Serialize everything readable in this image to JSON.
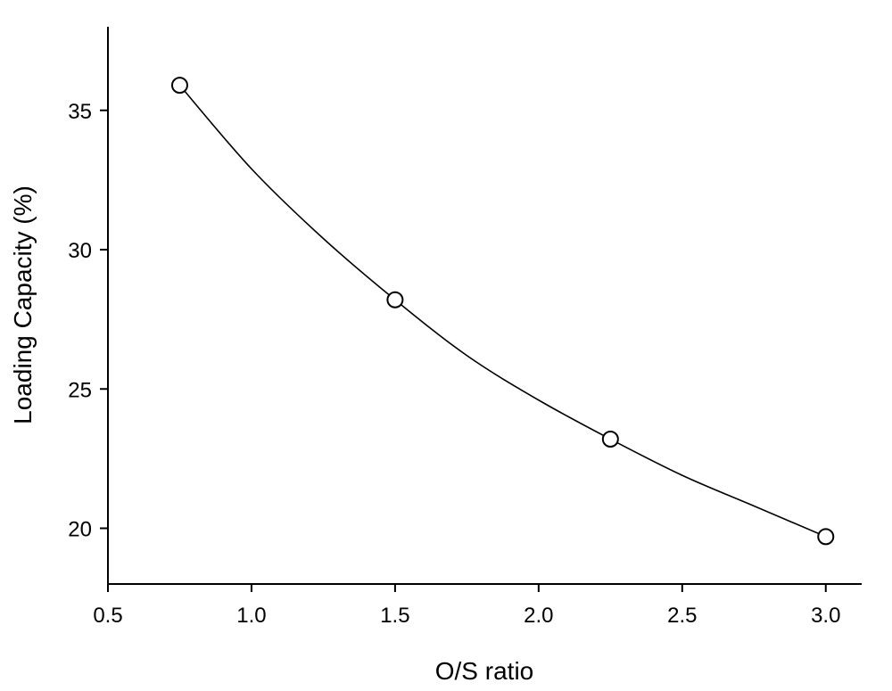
{
  "chart_data": {
    "type": "scatter",
    "title": "",
    "xlabel": "O/S ratio",
    "ylabel": "Loading Capacity (%)",
    "xlim": [
      0.5,
      3.125
    ],
    "ylim": [
      18,
      38
    ],
    "x_ticks": [
      0.5,
      1.0,
      1.5,
      2.0,
      2.5,
      3.0
    ],
    "x_tick_labels": [
      "0.5",
      "1.0",
      "1.5",
      "2.0",
      "2.5",
      "3.0"
    ],
    "y_ticks": [
      20,
      25,
      30,
      35
    ],
    "y_tick_labels": [
      "20",
      "25",
      "30",
      "35"
    ],
    "grid": false,
    "legend": "none",
    "series": [
      {
        "marker": "open-circle",
        "x": [
          0.75,
          1.5,
          2.25,
          3.0
        ],
        "y": [
          35.9,
          28.2,
          23.2,
          19.7
        ]
      }
    ],
    "fit_curve": {
      "style": "smooth-line",
      "x": [
        0.75,
        1.0,
        1.25,
        1.5,
        1.75,
        2.0,
        2.25,
        2.5,
        2.75,
        3.0
      ],
      "y": [
        35.9,
        32.9,
        30.4,
        28.2,
        26.2,
        24.6,
        23.2,
        21.9,
        20.8,
        19.7
      ]
    }
  }
}
